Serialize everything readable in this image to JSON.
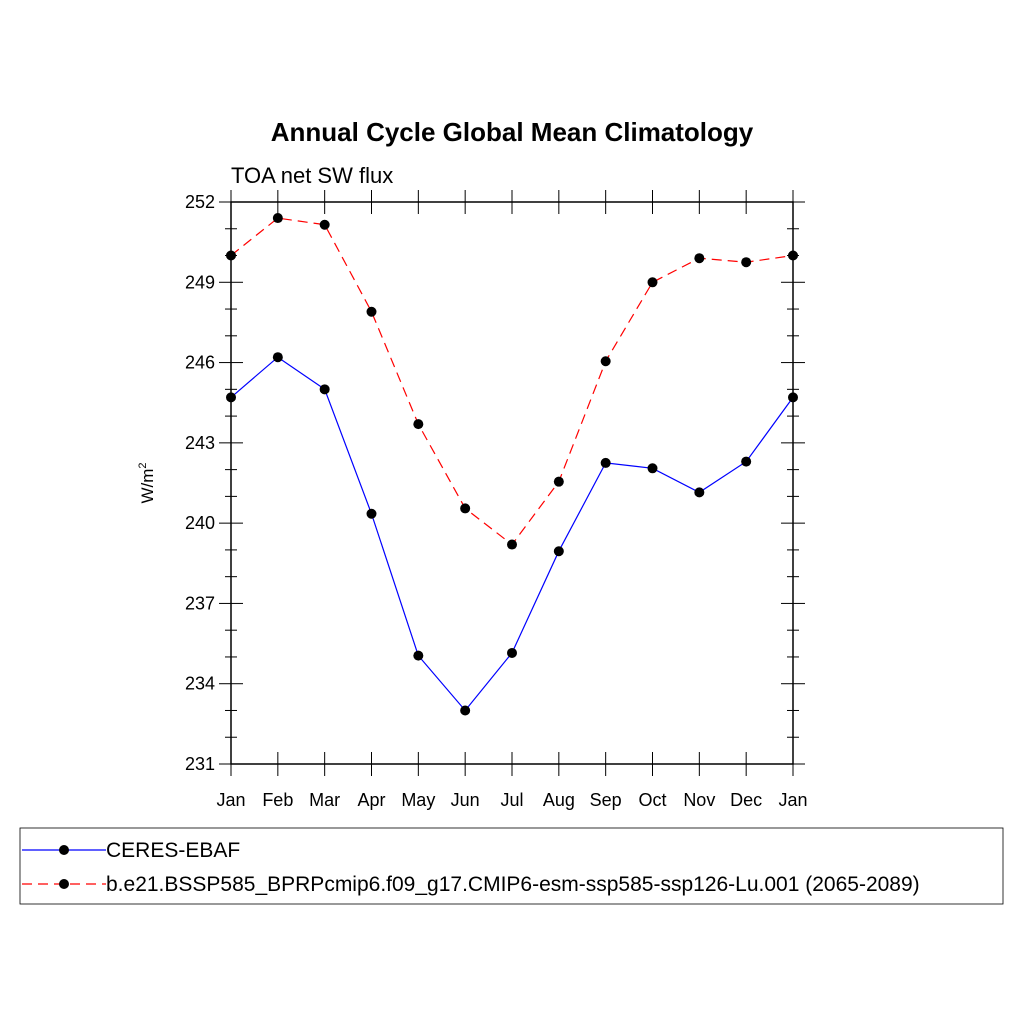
{
  "chart_data": {
    "type": "line",
    "title": "Annual Cycle Global Mean Climatology",
    "subtitle": "TOA net SW flux",
    "ylabel_base": "W/m",
    "ylabel_sup": "2",
    "xlabel": "",
    "categories": [
      "Jan",
      "Feb",
      "Mar",
      "Apr",
      "May",
      "Jun",
      "Jul",
      "Aug",
      "Sep",
      "Oct",
      "Nov",
      "Dec",
      "Jan"
    ],
    "ylim": [
      231,
      252
    ],
    "yticks": [
      231,
      234,
      237,
      240,
      243,
      246,
      249,
      252
    ],
    "series": [
      {
        "name": "CERES-EBAF",
        "color": "#0000ff",
        "dashed": false,
        "values": [
          244.7,
          246.2,
          245.0,
          240.35,
          235.05,
          233.0,
          235.15,
          238.95,
          242.25,
          242.05,
          241.15,
          242.3,
          244.7
        ]
      },
      {
        "name": "b.e21.BSSP585_BPRPcmip6.f09_g17.CMIP6-esm-ssp585-ssp126-Lu.001 (2065-2089)",
        "color": "#ff0000",
        "dashed": true,
        "values": [
          250.0,
          251.4,
          251.15,
          247.9,
          243.7,
          240.55,
          239.2,
          241.55,
          246.05,
          249.0,
          249.9,
          249.75,
          250.0
        ]
      }
    ],
    "legend_position": "bottom",
    "grid": false
  }
}
